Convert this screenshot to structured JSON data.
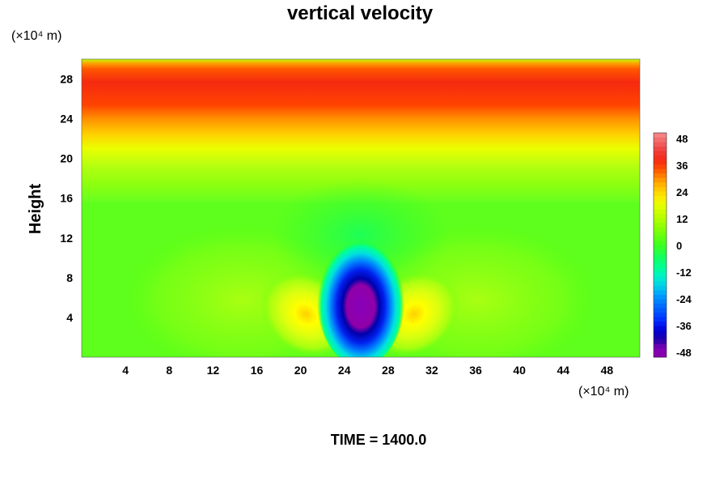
{
  "chart_data": {
    "type": "heatmap",
    "title": "vertical velocity",
    "ylabel": "Height",
    "xlabel": "",
    "x_unit": "(×10⁴ m)",
    "y_unit": "(×10⁴ m)",
    "xlim": [
      0,
      51
    ],
    "ylim": [
      0,
      30
    ],
    "x_ticks": [
      "4",
      "8",
      "12",
      "16",
      "20",
      "24",
      "28",
      "32",
      "36",
      "40",
      "44",
      "48"
    ],
    "y_ticks": [
      "4",
      "8",
      "12",
      "16",
      "20",
      "24",
      "28"
    ],
    "colorbar": {
      "min": -50,
      "max": 50,
      "ticks": [
        "48",
        "36",
        "24",
        "12",
        "0",
        "-12",
        "-24",
        "-36",
        "-48"
      ]
    },
    "field_description_values": {
      "upper_band_center_height": 26,
      "upper_band_peak": 38,
      "downdraft_center_x": 25.5,
      "downdraft_center_y": 4.5,
      "downdraft_min": -48,
      "updraft_left_center_x": 20.5,
      "updraft_right_center_x": 30.5,
      "updraft_center_y": 4,
      "updraft_peak": 24
    }
  },
  "footer": {
    "time_label": "TIME = 1400.0"
  }
}
